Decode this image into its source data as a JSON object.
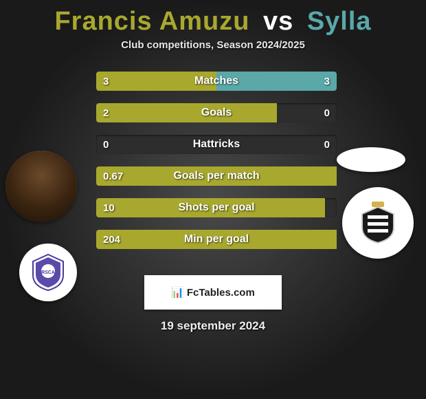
{
  "title": {
    "player1": "Francis Amuzu",
    "vs": "vs",
    "player2": "Sylla",
    "color_player1": "#a8a82e",
    "color_vs": "#ffffff",
    "color_player2": "#5aa8a8"
  },
  "subtitle": "Club competitions, Season 2024/2025",
  "bar_colors": {
    "left": "#a8a82e",
    "right_active": "#5aa8a8",
    "track": "#2d2d2d"
  },
  "bars": [
    {
      "label": "Matches",
      "left_val": "3",
      "right_val": "3",
      "left_pct": 50,
      "right_pct": 50
    },
    {
      "label": "Goals",
      "left_val": "2",
      "right_val": "0",
      "left_pct": 75,
      "right_pct": 0
    },
    {
      "label": "Hattricks",
      "left_val": "0",
      "right_val": "0",
      "left_pct": 0,
      "right_pct": 0
    },
    {
      "label": "Goals per match",
      "left_val": "0.67",
      "right_val": "",
      "left_pct": 100,
      "right_pct": 0
    },
    {
      "label": "Shots per goal",
      "left_val": "10",
      "right_val": "",
      "left_pct": 95,
      "right_pct": 0
    },
    {
      "label": "Min per goal",
      "left_val": "204",
      "right_val": "",
      "left_pct": 100,
      "right_pct": 0
    }
  ],
  "avatars": {
    "player1_name": "player1-photo",
    "player2_name": "player2-photo",
    "club1_label": "RSCA",
    "club2_label": "R.C.S.C."
  },
  "branding": {
    "icon": "📊",
    "text": "FcTables.com"
  },
  "date": "19 september 2024"
}
